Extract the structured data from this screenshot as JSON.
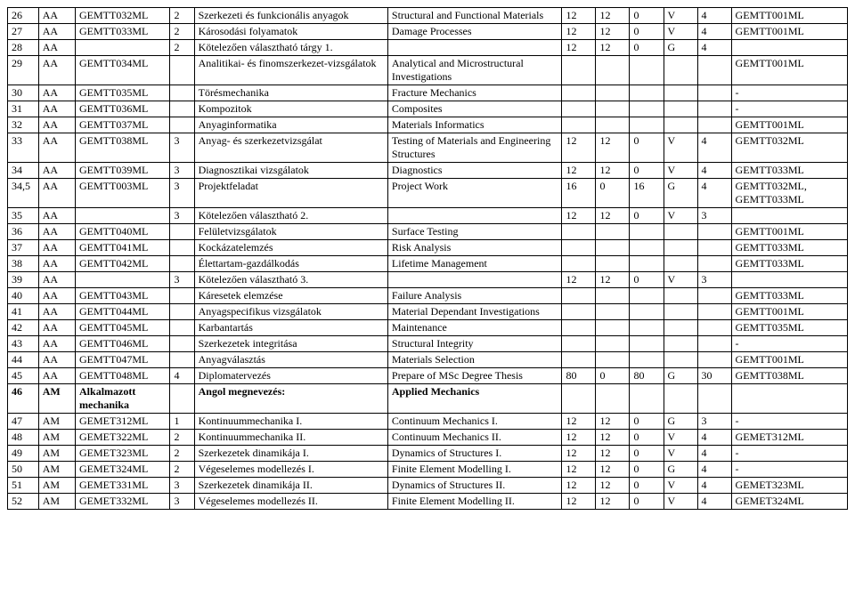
{
  "rows": [
    {
      "c0": "26",
      "c1": "AA",
      "c2": "GEMTT032ML",
      "c3": "2",
      "c4": "Szerkezeti és funkcionális anyagok",
      "c5": "Structural and Functional Materials",
      "c6": "12",
      "c7": "12",
      "c8": "0",
      "c9": "V",
      "c10": "4",
      "c11": "GEMTT001ML"
    },
    {
      "c0": "27",
      "c1": "AA",
      "c2": "GEMTT033ML",
      "c3": "2",
      "c4": "Károsodási folyamatok",
      "c5": "Damage Processes",
      "c6": "12",
      "c7": "12",
      "c8": "0",
      "c9": "V",
      "c10": "4",
      "c11": "GEMTT001ML"
    },
    {
      "c0": "28",
      "c1": "AA",
      "c2": "",
      "c3": "2",
      "c4": "Kötelezően választható tárgy 1.",
      "c5": "",
      "c6": "12",
      "c7": "12",
      "c8": "0",
      "c9": "G",
      "c10": "4",
      "c11": ""
    },
    {
      "c0": "29",
      "c1": "AA",
      "c2": "GEMTT034ML",
      "c3": "",
      "c4": "Analitikai- és finomszerkezet-vizsgálatok",
      "c5": "Analytical and Microstructural Investigations",
      "c6": "",
      "c7": "",
      "c8": "",
      "c9": "",
      "c10": "",
      "c11": "GEMTT001ML"
    },
    {
      "c0": "30",
      "c1": "AA",
      "c2": "GEMTT035ML",
      "c3": "",
      "c4": "Törésmechanika",
      "c5": "Fracture Mechanics",
      "c6": "",
      "c7": "",
      "c8": "",
      "c9": "",
      "c10": "",
      "c11": "-"
    },
    {
      "c0": "31",
      "c1": "AA",
      "c2": "GEMTT036ML",
      "c3": "",
      "c4": "Kompozitok",
      "c5": "Composites",
      "c6": "",
      "c7": "",
      "c8": "",
      "c9": "",
      "c10": "",
      "c11": "-"
    },
    {
      "c0": "32",
      "c1": "AA",
      "c2": "GEMTT037ML",
      "c3": "",
      "c4": "Anyaginformatika",
      "c5": "Materials Informatics",
      "c6": "",
      "c7": "",
      "c8": "",
      "c9": "",
      "c10": "",
      "c11": "GEMTT001ML"
    },
    {
      "c0": "33",
      "c1": "AA",
      "c2": "GEMTT038ML",
      "c3": "3",
      "c4": "Anyag- és szerkezetvizsgálat",
      "c5": "Testing of Materials and Engineering Structures",
      "c6": "12",
      "c7": "12",
      "c8": "0",
      "c9": "V",
      "c10": "4",
      "c11": "GEMTT032ML"
    },
    {
      "c0": "34",
      "c1": "AA",
      "c2": "GEMTT039ML",
      "c3": "3",
      "c4": "Diagnosztikai vizsgálatok",
      "c5": "Diagnostics",
      "c6": "12",
      "c7": "12",
      "c8": "0",
      "c9": "V",
      "c10": "4",
      "c11": "GEMTT033ML"
    },
    {
      "c0": "34,5",
      "c1": "AA",
      "c2": "GEMTT003ML",
      "c3": "3",
      "c4": "Projektfeladat",
      "c5": "Project Work",
      "c6": "16",
      "c7": "0",
      "c8": "16",
      "c9": "G",
      "c10": "4",
      "c11": "GEMTT032ML, GEMTT033ML"
    },
    {
      "c0": "35",
      "c1": "AA",
      "c2": "",
      "c3": "3",
      "c4": "Kötelezően választható 2.",
      "c5": "",
      "c6": "12",
      "c7": "12",
      "c8": "0",
      "c9": "V",
      "c10": "3",
      "c11": ""
    },
    {
      "c0": "36",
      "c1": "AA",
      "c2": "GEMTT040ML",
      "c3": "",
      "c4": "Felületvizsgálatok",
      "c5": "Surface Testing",
      "c6": "",
      "c7": "",
      "c8": "",
      "c9": "",
      "c10": "",
      "c11": "GEMTT001ML"
    },
    {
      "c0": "37",
      "c1": "AA",
      "c2": "GEMTT041ML",
      "c3": "",
      "c4": "Kockázatelemzés",
      "c5": "Risk Analysis",
      "c6": "",
      "c7": "",
      "c8": "",
      "c9": "",
      "c10": "",
      "c11": "GEMTT033ML"
    },
    {
      "c0": "38",
      "c1": "AA",
      "c2": "GEMTT042ML",
      "c3": "",
      "c4": "Élettartam-gazdálkodás",
      "c5": "Lifetime Management",
      "c6": "",
      "c7": "",
      "c8": "",
      "c9": "",
      "c10": "",
      "c11": "GEMTT033ML"
    },
    {
      "c0": "39",
      "c1": "AA",
      "c2": "",
      "c3": "3",
      "c4": "Kötelezően választható 3.",
      "c5": "",
      "c6": "12",
      "c7": "12",
      "c8": "0",
      "c9": "V",
      "c10": "3",
      "c11": ""
    },
    {
      "c0": "40",
      "c1": "AA",
      "c2": "GEMTT043ML",
      "c3": "",
      "c4": "Káresetek elemzése",
      "c5": "Failure Analysis",
      "c6": "",
      "c7": "",
      "c8": "",
      "c9": "",
      "c10": "",
      "c11": "GEMTT033ML"
    },
    {
      "c0": "41",
      "c1": "AA",
      "c2": "GEMTT044ML",
      "c3": "",
      "c4": "Anyagspecifikus vizsgálatok",
      "c5": "Material Dependant Investigations",
      "c6": "",
      "c7": "",
      "c8": "",
      "c9": "",
      "c10": "",
      "c11": "GEMTT001ML"
    },
    {
      "c0": "42",
      "c1": "AA",
      "c2": "GEMTT045ML",
      "c3": "",
      "c4": "Karbantartás",
      "c5": "Maintenance",
      "c6": "",
      "c7": "",
      "c8": "",
      "c9": "",
      "c10": "",
      "c11": "GEMTT035ML"
    },
    {
      "c0": "43",
      "c1": "AA",
      "c2": "GEMTT046ML",
      "c3": "",
      "c4": "Szerkezetek integritása",
      "c5": "Structural Integrity",
      "c6": "",
      "c7": "",
      "c8": "",
      "c9": "",
      "c10": "",
      "c11": "-"
    },
    {
      "c0": "44",
      "c1": "AA",
      "c2": "GEMTT047ML",
      "c3": "",
      "c4": "Anyagválasztás",
      "c5": "Materials Selection",
      "c6": "",
      "c7": "",
      "c8": "",
      "c9": "",
      "c10": "",
      "c11": "GEMTT001ML"
    },
    {
      "c0": "45",
      "c1": "AA",
      "c2": "GEMTT048ML",
      "c3": "4",
      "c4": "Diplomatervezés",
      "c5": "Prepare of MSc Degree Thesis",
      "c6": "80",
      "c7": "0",
      "c8": "80",
      "c9": "G",
      "c10": "30",
      "c11": "GEMTT038ML"
    },
    {
      "bold": true,
      "c0": "46",
      "c1": "AM",
      "c2": "Alkalmazott mechanika",
      "c3": "",
      "c4": "Angol megnevezés:",
      "c5": "Applied Mechanics",
      "c6": "",
      "c7": "",
      "c8": "",
      "c9": "",
      "c10": "",
      "c11": ""
    },
    {
      "c0": "47",
      "c1": "AM",
      "c2": "GEMET312ML",
      "c3": "1",
      "c4": "Kontinuummechanika I.",
      "c5": "Continuum Mechanics I.",
      "c6": "12",
      "c7": "12",
      "c8": "0",
      "c9": "G",
      "c10": "3",
      "c11": "-"
    },
    {
      "c0": "48",
      "c1": "AM",
      "c2": "GEMET322ML",
      "c3": "2",
      "c4": "Kontinuummechanika II.",
      "c5": "Continuum Mechanics II.",
      "c6": "12",
      "c7": "12",
      "c8": "0",
      "c9": "V",
      "c10": "4",
      "c11": "GEMET312ML"
    },
    {
      "c0": "49",
      "c1": "AM",
      "c2": "GEMET323ML",
      "c3": "2",
      "c4": "Szerkezetek dinamikája I.",
      "c5": "Dynamics of Structures I.",
      "c6": "12",
      "c7": "12",
      "c8": "0",
      "c9": "V",
      "c10": "4",
      "c11": "-"
    },
    {
      "c0": "50",
      "c1": "AM",
      "c2": "GEMET324ML",
      "c3": "2",
      "c4": "Végeselemes modellezés I.",
      "c5": "Finite Element Modelling I.",
      "c6": "12",
      "c7": "12",
      "c8": "0",
      "c9": "G",
      "c10": "4",
      "c11": "-"
    },
    {
      "c0": "51",
      "c1": "AM",
      "c2": "GEMET331ML",
      "c3": "3",
      "c4": "Szerkezetek dinamikája II.",
      "c5": "Dynamics of Structures II.",
      "c6": "12",
      "c7": "12",
      "c8": "0",
      "c9": "V",
      "c10": "4",
      "c11": "GEMET323ML"
    },
    {
      "c0": "52",
      "c1": "AM",
      "c2": "GEMET332ML",
      "c3": "3",
      "c4": "Végeselemes modellezés II.",
      "c5": "Finite Element Modelling II.",
      "c6": "12",
      "c7": "12",
      "c8": "0",
      "c9": "V",
      "c10": "4",
      "c11": "GEMET324ML"
    }
  ]
}
